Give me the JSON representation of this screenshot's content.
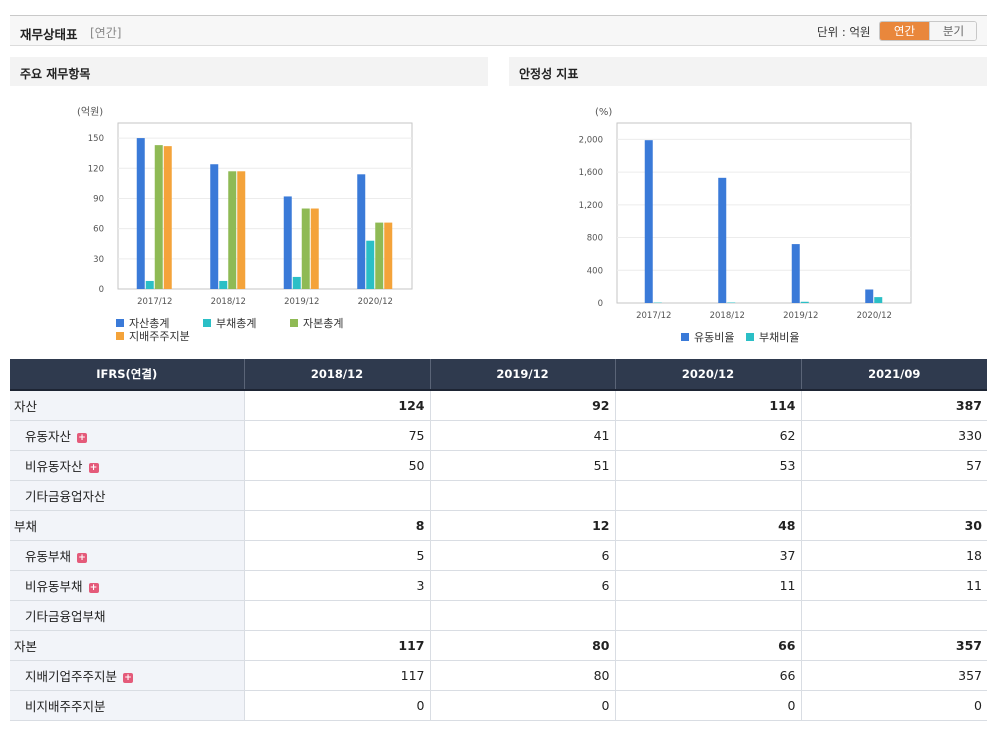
{
  "header": {
    "title": "재무상태표",
    "subtitle": "[연간]",
    "unit_label": "단위 : 억원",
    "toggle": {
      "annual": "연간",
      "quarter": "분기"
    }
  },
  "panels": {
    "left_title": "주요 재무항목",
    "right_title": "안정성 지표"
  },
  "chart_data": [
    {
      "type": "bar",
      "ylabel": "(억원)",
      "categories": [
        "2017/12",
        "2018/12",
        "2019/12",
        "2020/12"
      ],
      "ylim": [
        0,
        165
      ],
      "yticks": [
        "0",
        "30",
        "60",
        "90",
        "120",
        "150"
      ],
      "ytick_values": [
        0,
        30,
        60,
        90,
        120,
        150
      ],
      "grid": true,
      "legend_position": "bottom",
      "series": [
        {
          "name": "자산총계",
          "color": "#3a7ad8",
          "values": [
            150,
            124,
            92,
            114
          ]
        },
        {
          "name": "부채총계",
          "color": "#2bbfc6",
          "values": [
            8,
            8,
            12,
            48
          ]
        },
        {
          "name": "자본총계",
          "color": "#8fba55",
          "values": [
            143,
            117,
            80,
            66
          ]
        },
        {
          "name": "지배주주지분",
          "color": "#f4a33a",
          "values": [
            142,
            117,
            80,
            66
          ]
        }
      ]
    },
    {
      "type": "bar",
      "ylabel": "(%)",
      "categories": [
        "2017/12",
        "2018/12",
        "2019/12",
        "2020/12"
      ],
      "ylim": [
        0,
        2200
      ],
      "yticks": [
        "0",
        "400",
        "800",
        "1,200",
        "1,600",
        "2,000"
      ],
      "ytick_values": [
        0,
        400,
        800,
        1200,
        1600,
        2000
      ],
      "grid": true,
      "legend_position": "bottom",
      "series": [
        {
          "name": "유동비율",
          "color": "#3a7ad8",
          "values": [
            1990,
            1530,
            720,
            165
          ]
        },
        {
          "name": "부채비율",
          "color": "#2bbfc6",
          "values": [
            5,
            6,
            15,
            72
          ]
        }
      ]
    }
  ],
  "table": {
    "corner": "IFRS(연결)",
    "columns": [
      "2018/12",
      "2019/12",
      "2020/12",
      "2021/09"
    ],
    "rows": [
      {
        "label": "자산",
        "level": "main",
        "expand": false,
        "values": [
          "124",
          "92",
          "114",
          "387"
        ]
      },
      {
        "label": "유동자산",
        "level": "child",
        "expand": true,
        "values": [
          "75",
          "41",
          "62",
          "330"
        ]
      },
      {
        "label": "비유동자산",
        "level": "child",
        "expand": true,
        "values": [
          "50",
          "51",
          "53",
          "57"
        ]
      },
      {
        "label": "기타금융업자산",
        "level": "child",
        "expand": false,
        "values": [
          "",
          "",
          "",
          ""
        ]
      },
      {
        "label": "부채",
        "level": "main",
        "expand": false,
        "values": [
          "8",
          "12",
          "48",
          "30"
        ]
      },
      {
        "label": "유동부채",
        "level": "child",
        "expand": true,
        "values": [
          "5",
          "6",
          "37",
          "18"
        ]
      },
      {
        "label": "비유동부채",
        "level": "child",
        "expand": true,
        "values": [
          "3",
          "6",
          "11",
          "11"
        ]
      },
      {
        "label": "기타금융업부채",
        "level": "child",
        "expand": false,
        "values": [
          "",
          "",
          "",
          ""
        ]
      },
      {
        "label": "자본",
        "level": "main",
        "expand": false,
        "values": [
          "117",
          "80",
          "66",
          "357"
        ]
      },
      {
        "label": "지배기업주주지분",
        "level": "child",
        "expand": true,
        "values": [
          "117",
          "80",
          "66",
          "357"
        ]
      },
      {
        "label": "비지배주주지분",
        "level": "child",
        "expand": false,
        "values": [
          "0",
          "0",
          "0",
          "0"
        ]
      }
    ]
  }
}
